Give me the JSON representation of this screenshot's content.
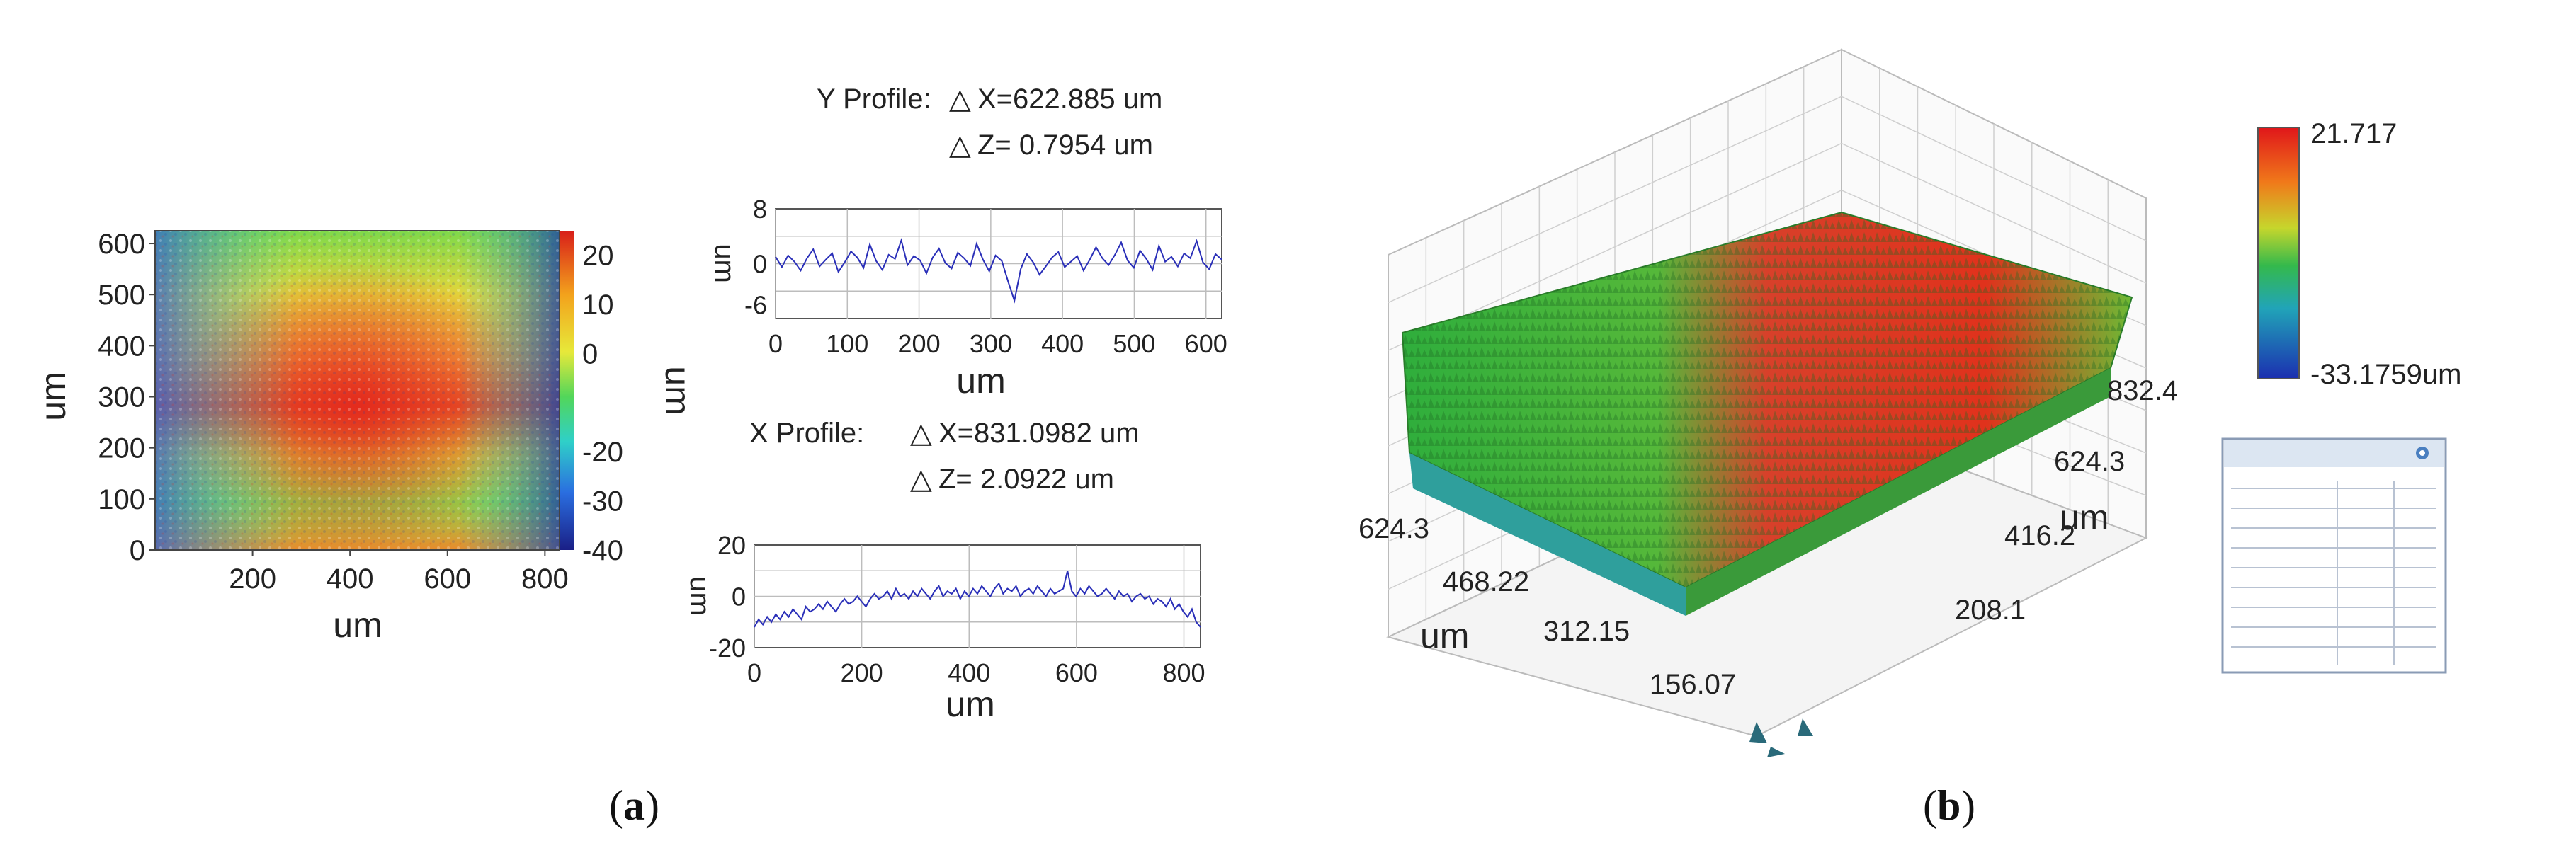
{
  "panels": [
    {
      "label_prefix": "(",
      "label_letter": "a",
      "label_suffix": ")"
    },
    {
      "label_prefix": "(",
      "label_letter": "b",
      "label_suffix": ")"
    }
  ],
  "chart_data": [
    {
      "type": "heatmap",
      "id": "surface-map-2d",
      "xlabel": "um",
      "ylabel": "um",
      "xticks": [
        "200",
        "400",
        "600",
        "800"
      ],
      "yticks": [
        "0",
        "100",
        "200",
        "300",
        "400",
        "500",
        "600"
      ],
      "xlim": [
        0,
        830
      ],
      "ylim": [
        0,
        625
      ],
      "colorbar": {
        "label": "um",
        "ticks": [
          "20",
          "10",
          "0",
          "-20",
          "-30",
          "-40"
        ],
        "range": [
          -40,
          25
        ]
      },
      "colors": {
        "high": "#e8241c",
        "mid": "#6fd84a",
        "low": "#1a2f9a"
      }
    },
    {
      "type": "line",
      "id": "y-profile",
      "header": {
        "name": "Y Profile:",
        "dx": "X=622.885 um",
        "dz": "Z= 0.7954 um"
      },
      "delta_symbol": "△",
      "xlabel": "um",
      "ylabel": "um",
      "xticks": [
        "0",
        "100",
        "200",
        "300",
        "400",
        "500",
        "600"
      ],
      "yticks": [
        "8",
        "0",
        "-6"
      ],
      "xlim": [
        0,
        622
      ],
      "ylim": [
        -8,
        8
      ],
      "series": [
        {
          "values": [
            1.0,
            -0.5,
            1.2,
            0.3,
            -1.0,
            0.8,
            2.1,
            -0.4,
            0.6,
            1.5,
            -1.2,
            0.2,
            1.8,
            0.9,
            -0.6,
            2.8,
            0.4,
            -0.9,
            1.3,
            0.7,
            3.4,
            -0.2,
            1.1,
            0.5,
            -1.4,
            0.9,
            2.2,
            0.1,
            -0.7,
            1.6,
            0.8,
            -0.3,
            2.9,
            0.6,
            -1.1,
            1.2,
            0.4,
            -2.6,
            -5.4,
            -0.8,
            1.4,
            0.2,
            -1.6,
            -0.4,
            0.9,
            1.7,
            -0.5,
            0.3,
            1.1,
            -1.0,
            0.6,
            2.4,
            0.8,
            -0.2,
            1.3,
            3.1,
            0.5,
            -0.6,
            1.9,
            0.7,
            -0.9,
            2.6,
            0.3,
            1.0,
            -0.4,
            1.5,
            0.8,
            3.3,
            0.2,
            -0.8,
            1.4,
            0.6
          ]
        }
      ],
      "line_color": "#2a2fb8"
    },
    {
      "type": "line",
      "id": "x-profile",
      "header": {
        "name": "X Profile:",
        "dx": "X=831.0982 um",
        "dz": "Z= 2.0922 um"
      },
      "delta_symbol": "△",
      "xlabel": "um",
      "ylabel": "um",
      "xticks": [
        "0",
        "200",
        "400",
        "600",
        "800"
      ],
      "yticks": [
        "20",
        "0",
        "-20"
      ],
      "xlim": [
        0,
        831
      ],
      "ylim": [
        -20,
        20
      ],
      "series": [
        {
          "values": [
            -12,
            -9,
            -11,
            -8,
            -10,
            -7,
            -9,
            -6,
            -8,
            -5,
            -7,
            -9,
            -4,
            -6,
            -5,
            -3,
            -5,
            -2,
            -4,
            -6,
            -3,
            -1,
            -3,
            -2,
            0,
            -2,
            -4,
            -1,
            1,
            -1,
            0,
            2,
            -1,
            3,
            0,
            1,
            -1,
            2,
            0,
            3,
            1,
            -1,
            2,
            4,
            0,
            2,
            1,
            3,
            -1,
            2,
            0,
            3,
            1,
            4,
            2,
            0,
            3,
            5,
            1,
            3,
            2,
            4,
            0,
            2,
            3,
            1,
            4,
            2,
            0,
            3,
            1,
            2,
            3,
            10,
            2,
            0,
            3,
            1,
            4,
            2,
            0,
            1,
            3,
            1,
            -1,
            2,
            0,
            1,
            -2,
            0,
            1,
            -1,
            0,
            -3,
            -1,
            -2,
            -4,
            -1,
            -5,
            -3,
            -6,
            -8,
            -5,
            -10,
            -12
          ]
        }
      ],
      "line_color": "#2a2fb8"
    },
    {
      "type": "surface-3d",
      "id": "surface-3d",
      "axis_ticks_left": [
        "624.3",
        "468.22",
        "312.15",
        "156.07"
      ],
      "axis_label_left": "um",
      "axis_ticks_right": [
        "832.4",
        "624.3",
        "416.2",
        "208.1"
      ],
      "axis_label_right": "um",
      "colorbar": {
        "max": "21.717",
        "min": "-33.1759um"
      },
      "colors": {
        "high": "#e0231b",
        "mid": "#3fb83c",
        "low": "#1b4fc8"
      }
    }
  ]
}
